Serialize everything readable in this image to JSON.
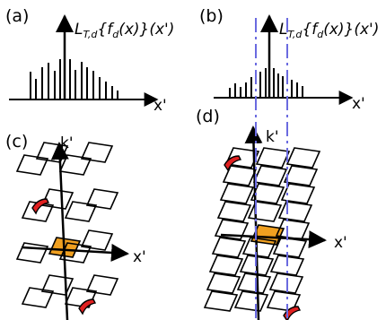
{
  "panels": {
    "a": {
      "label": "(a)"
    },
    "b": {
      "label": "(b)"
    },
    "c": {
      "label": "(c)"
    },
    "d": {
      "label": "(d)"
    }
  },
  "transform_label": {
    "main": "L",
    "sub": "T,d",
    "rest": "{f",
    "sub2": "d",
    "tail": "(x)}(x')"
  },
  "axes": {
    "x": "x'",
    "k": "k'"
  },
  "colors": {
    "ink": "#000000",
    "center_fill": "#f0a020",
    "dashed": "#6a6ae0",
    "red_fill": "#e02020"
  }
}
